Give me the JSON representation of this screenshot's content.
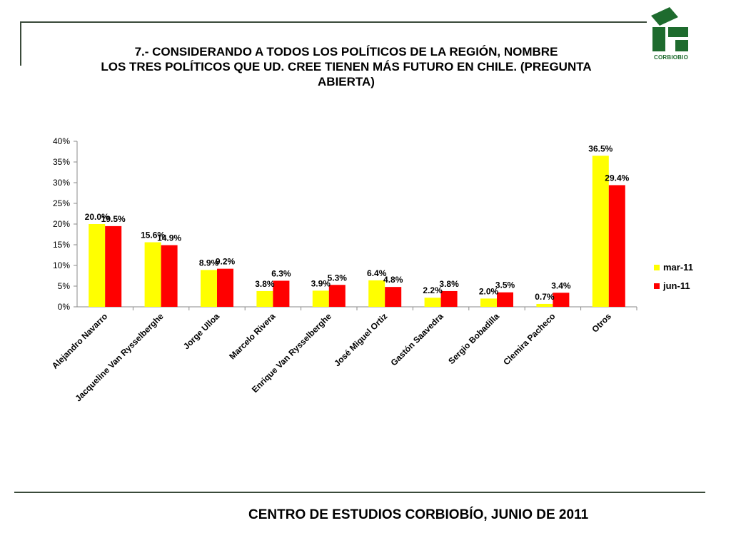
{
  "header": {
    "title_lines": [
      "7.- CONSIDERANDO A TODOS LOS POLÍTICOS DE LA REGIÓN, NOMBRE",
      "LOS TRES POLÍTICOS QUE UD. CREE TIENEN MÁS FUTURO EN CHILE. (PREGUNTA",
      "ABIERTA)"
    ],
    "logo_text": "CORBIOBIO"
  },
  "footer": {
    "text": "CENTRO DE ESTUDIOS CORBIOBÍO, JUNIO DE 2011"
  },
  "chart_data": {
    "type": "bar",
    "categories": [
      "Alejandro Navarro",
      "Jacqueline Van Rysselberghe",
      "Jorge Ulloa",
      "Marcelo Rivera",
      "Enrique Van Rysselberghe",
      "José Miguel Ortiz",
      "Gastón Saavedra",
      "Sergio Bobadilla",
      "Clemira Pacheco",
      "Otros"
    ],
    "series": [
      {
        "name": "mar-11",
        "color": "#ffff00",
        "values": [
          20.0,
          15.6,
          8.9,
          3.8,
          3.9,
          6.4,
          2.2,
          2.0,
          0.7,
          36.5
        ],
        "labels": [
          "20.0%",
          "15.6%",
          "8.9%",
          "3.8%",
          "3.9%",
          "6.4%",
          "2.2%",
          "2.0%",
          "0.7%",
          "36.5%"
        ]
      },
      {
        "name": "jun-11",
        "color": "#ff0000",
        "values": [
          19.5,
          14.9,
          9.2,
          6.3,
          5.3,
          4.8,
          3.8,
          3.5,
          3.4,
          29.4
        ],
        "labels": [
          "19.5%",
          "14.9%",
          "9.2%",
          "6.3%",
          "5.3%",
          "4.8%",
          "3.8%",
          "3.5%",
          "3.4%",
          "29.4%"
        ]
      }
    ],
    "ylim": [
      0,
      40
    ],
    "yticks": [
      "0%",
      "5%",
      "10%",
      "15%",
      "20%",
      "25%",
      "30%",
      "35%",
      "40%"
    ],
    "grid": false,
    "legend": "right"
  }
}
